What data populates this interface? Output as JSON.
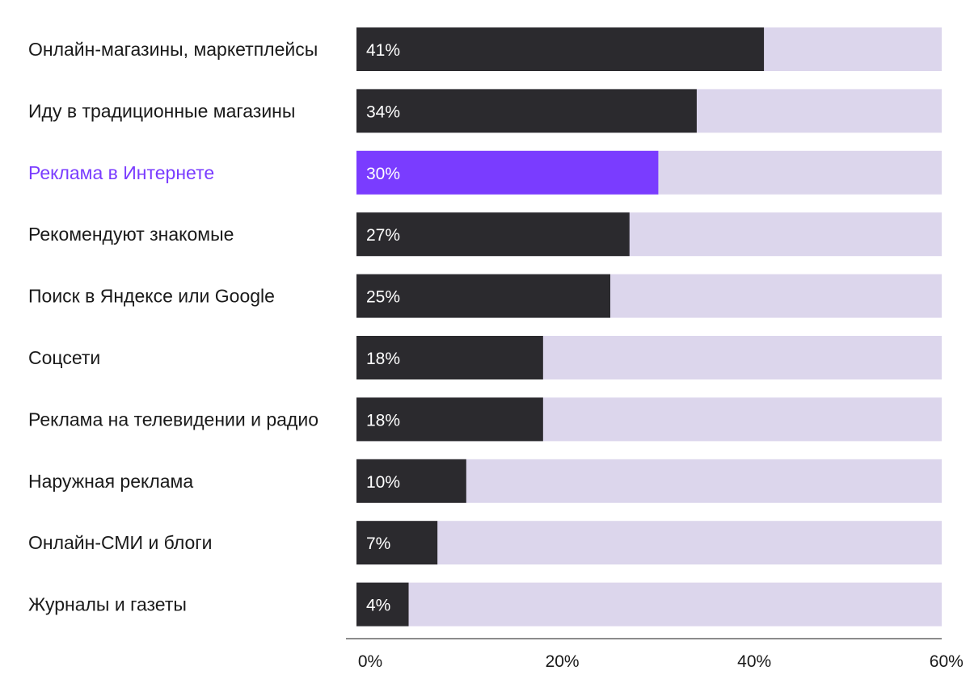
{
  "chart_data": {
    "type": "bar",
    "orientation": "horizontal",
    "categories": [
      "Онлайн-магазины, маркетплейсы",
      "Иду в традиционные магазины",
      "Реклама в Интернете",
      "Рекомендуют знакомые",
      "Поиск в Яндексе или Google",
      "Соцсети",
      "Реклама  на телевидении и радио",
      "Наружная реклама",
      "Онлайн-СМИ и блоги",
      "Журналы и газеты"
    ],
    "values": [
      41,
      34,
      30,
      27,
      25,
      18,
      18,
      10,
      7,
      4
    ],
    "value_labels": [
      "41%",
      "34%",
      "30%",
      "27%",
      "25%",
      "18%",
      "18%",
      "10%",
      "7%",
      "4%"
    ],
    "highlight_index": 2,
    "xlim": [
      0,
      60
    ],
    "xticks": [
      0,
      20,
      40,
      60
    ],
    "xtick_labels": [
      "0%",
      "20%",
      "40%",
      "60%"
    ],
    "title": "",
    "xlabel": "",
    "ylabel": "",
    "grid": false,
    "legend": "none",
    "colors": {
      "bar": "#2b2a2e",
      "highlight": "#7a3cff",
      "track": "#dcd6ec",
      "highlight_label": "#7a3cff",
      "axis": "#1a1a1a"
    }
  }
}
